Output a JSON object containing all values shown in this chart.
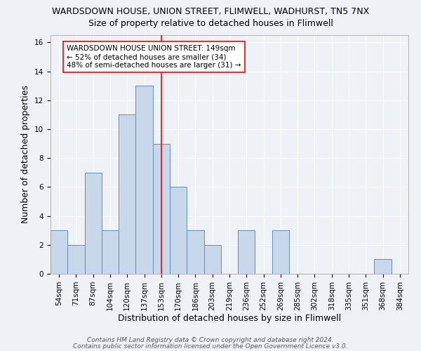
{
  "title": "WARDSDOWN HOUSE, UNION STREET, FLIMWELL, WADHURST, TN5 7NX",
  "subtitle": "Size of property relative to detached houses in Flimwell",
  "xlabel": "Distribution of detached houses by size in Flimwell",
  "ylabel": "Number of detached properties",
  "categories": [
    "54sqm",
    "71sqm",
    "87sqm",
    "104sqm",
    "120sqm",
    "137sqm",
    "153sqm",
    "170sqm",
    "186sqm",
    "203sqm",
    "219sqm",
    "236sqm",
    "252sqm",
    "269sqm",
    "285sqm",
    "302sqm",
    "318sqm",
    "335sqm",
    "351sqm",
    "368sqm",
    "384sqm"
  ],
  "values": [
    3,
    2,
    7,
    3,
    11,
    13,
    9,
    6,
    3,
    2,
    0,
    3,
    0,
    3,
    0,
    0,
    0,
    0,
    0,
    1,
    0
  ],
  "bar_color": "#c8d8ea",
  "bar_edge_color": "#6090b8",
  "red_line_index": 6,
  "annotation_text": "WARDSDOWN HOUSE UNION STREET: 149sqm\n← 52% of detached houses are smaller (34)\n48% of semi-detached houses are larger (31) →",
  "ylim": [
    0,
    16.5
  ],
  "yticks": [
    0,
    2,
    4,
    6,
    8,
    10,
    12,
    14,
    16
  ],
  "footer1": "Contains HM Land Registry data © Crown copyright and database right 2024.",
  "footer2": "Contains public sector information licensed under the Open Government Licence v3.0.",
  "background_color": "#eef2f7",
  "grid_color": "#ffffff",
  "title_fontsize": 9,
  "subtitle_fontsize": 9,
  "axis_label_fontsize": 9,
  "tick_fontsize": 7.5,
  "annotation_fontsize": 7.5,
  "footer_fontsize": 6.5
}
